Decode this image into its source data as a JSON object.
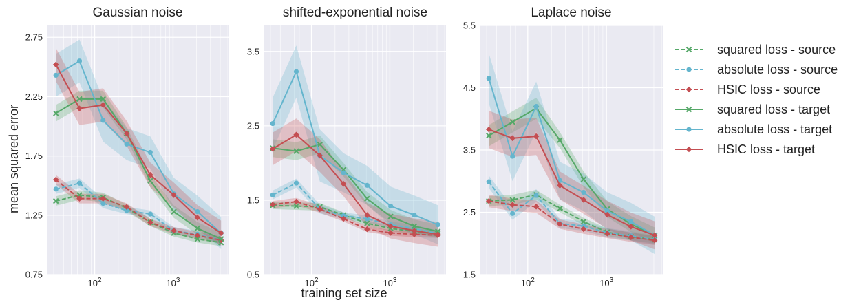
{
  "figure": {
    "ylabel": "mean squared error",
    "xlabel": "training set size"
  },
  "legend": [
    {
      "label": "squared loss - source",
      "color": "#55a868",
      "style": "dashed",
      "marker": "x"
    },
    {
      "label": "absolute loss - source",
      "color": "#64b5cd",
      "style": "dashed",
      "marker": "o"
    },
    {
      "label": "HSIC loss - source",
      "color": "#c44e52",
      "style": "dashed",
      "marker": "D"
    },
    {
      "label": "squared loss - target",
      "color": "#55a868",
      "style": "solid",
      "marker": "x"
    },
    {
      "label": "absolute loss - target",
      "color": "#64b5cd",
      "style": "solid",
      "marker": "o"
    },
    {
      "label": "HSIC loss - target",
      "color": "#c44e52",
      "style": "solid",
      "marker": "D"
    }
  ],
  "chart_data": [
    {
      "type": "line",
      "title": "Gaussian noise",
      "xscale": "log",
      "x": [
        32,
        64,
        128,
        256,
        512,
        1024,
        2048,
        4096
      ],
      "xticks": [
        {
          "value": 100,
          "label": "10^2"
        },
        {
          "value": 1000,
          "label": "10^3"
        }
      ],
      "ylim": [
        0.75,
        2.85
      ],
      "yticks": [
        {
          "value": 0.75,
          "label": "0.75"
        },
        {
          "value": 1.25,
          "label": "1.25"
        },
        {
          "value": 1.75,
          "label": "1.75"
        },
        {
          "value": 2.25,
          "label": "2.25"
        },
        {
          "value": 2.75,
          "label": "2.75"
        }
      ],
      "grid": true,
      "series": [
        {
          "name": "squared loss - source",
          "color": "#55a868",
          "style": "dashed",
          "marker": "x",
          "values": [
            1.37,
            1.42,
            1.4,
            1.31,
            1.19,
            1.1,
            1.05,
            1.02
          ],
          "band": 0.04
        },
        {
          "name": "absolute loss - source",
          "color": "#64b5cd",
          "style": "dashed",
          "marker": "o",
          "values": [
            1.47,
            1.52,
            1.35,
            1.29,
            1.26,
            1.12,
            1.09,
            1.04
          ],
          "band": 0.04
        },
        {
          "name": "HSIC loss - source",
          "color": "#c44e52",
          "style": "dashed",
          "marker": "D",
          "values": [
            1.55,
            1.39,
            1.39,
            1.32,
            1.19,
            1.12,
            1.08,
            1.04
          ],
          "band": 0.04
        },
        {
          "name": "squared loss - target",
          "color": "#55a868",
          "style": "solid",
          "marker": "x",
          "values": [
            2.11,
            2.23,
            2.23,
            1.94,
            1.54,
            1.28,
            1.14,
            1.05
          ],
          "band": 0.07
        },
        {
          "name": "absolute loss - target",
          "color": "#64b5cd",
          "style": "solid",
          "marker": "o",
          "values": [
            2.43,
            2.55,
            2.05,
            1.85,
            1.78,
            1.43,
            1.28,
            1.1
          ],
          "band": 0.18
        },
        {
          "name": "HSIC loss - target",
          "color": "#c44e52",
          "style": "solid",
          "marker": "D",
          "values": [
            2.52,
            2.15,
            2.18,
            1.94,
            1.59,
            1.42,
            1.23,
            1.1
          ],
          "band": 0.14
        }
      ]
    },
    {
      "type": "line",
      "title": "shifted-exponential noise",
      "xscale": "log",
      "x": [
        32,
        64,
        128,
        256,
        512,
        1024,
        2048,
        4096
      ],
      "xticks": [
        {
          "value": 100,
          "label": "10^2"
        },
        {
          "value": 1000,
          "label": "10^3"
        }
      ],
      "ylim": [
        0.5,
        3.85
      ],
      "yticks": [
        {
          "value": 0.5,
          "label": "0.5"
        },
        {
          "value": 1.5,
          "label": "1.5"
        },
        {
          "value": 2.5,
          "label": "2.5"
        },
        {
          "value": 3.5,
          "label": "3.5"
        }
      ],
      "grid": true,
      "series": [
        {
          "name": "squared loss - source",
          "color": "#55a868",
          "style": "dashed",
          "marker": "x",
          "values": [
            1.43,
            1.42,
            1.41,
            1.3,
            1.19,
            1.12,
            1.08,
            1.05
          ],
          "band": 0.05
        },
        {
          "name": "absolute loss - source",
          "color": "#64b5cd",
          "style": "dashed",
          "marker": "o",
          "values": [
            1.57,
            1.73,
            1.38,
            1.29,
            1.25,
            1.17,
            1.12,
            1.05
          ],
          "band": 0.06
        },
        {
          "name": "HSIC loss - source",
          "color": "#c44e52",
          "style": "dashed",
          "marker": "D",
          "values": [
            1.44,
            1.48,
            1.38,
            1.25,
            1.11,
            1.06,
            1.04,
            1.03
          ],
          "band": 0.05
        },
        {
          "name": "squared loss - target",
          "color": "#55a868",
          "style": "solid",
          "marker": "x",
          "values": [
            2.2,
            2.16,
            2.25,
            1.91,
            1.52,
            1.28,
            1.15,
            1.08
          ],
          "band": 0.12
        },
        {
          "name": "absolute loss - target",
          "color": "#64b5cd",
          "style": "solid",
          "marker": "o",
          "values": [
            2.53,
            3.23,
            2.1,
            1.87,
            1.7,
            1.42,
            1.3,
            1.17
          ],
          "band": 0.35
        },
        {
          "name": "HSIC loss - target",
          "color": "#c44e52",
          "style": "solid",
          "marker": "D",
          "values": [
            2.19,
            2.38,
            2.1,
            1.72,
            1.3,
            1.15,
            1.09,
            1.04
          ],
          "band": 0.22
        }
      ]
    },
    {
      "type": "line",
      "title": "Laplace noise",
      "xscale": "log",
      "x": [
        32,
        64,
        128,
        256,
        512,
        1024,
        2048,
        4096
      ],
      "xticks": [
        {
          "value": 100,
          "label": "10^2"
        },
        {
          "value": 1000,
          "label": "10^3"
        }
      ],
      "ylim": [
        1.5,
        5.5
      ],
      "yticks": [
        {
          "value": 1.5,
          "label": "1.5"
        },
        {
          "value": 2.5,
          "label": "2.5"
        },
        {
          "value": 3.5,
          "label": "3.5"
        },
        {
          "value": 4.5,
          "label": "4.5"
        },
        {
          "value": 5.5,
          "label": "5.5"
        }
      ],
      "grid": true,
      "series": [
        {
          "name": "squared loss - source",
          "color": "#55a868",
          "style": "dashed",
          "marker": "x",
          "values": [
            2.68,
            2.7,
            2.78,
            2.56,
            2.35,
            2.18,
            2.11,
            2.06
          ],
          "band": 0.08
        },
        {
          "name": "absolute loss - source",
          "color": "#64b5cd",
          "style": "dashed",
          "marker": "o",
          "values": [
            2.99,
            2.48,
            2.77,
            2.32,
            2.28,
            2.17,
            2.12,
            2.06
          ],
          "band": 0.1
        },
        {
          "name": "HSIC loss - source",
          "color": "#c44e52",
          "style": "dashed",
          "marker": "D",
          "values": [
            2.68,
            2.62,
            2.59,
            2.31,
            2.23,
            2.16,
            2.1,
            2.05
          ],
          "band": 0.1
        },
        {
          "name": "squared loss - target",
          "color": "#55a868",
          "style": "solid",
          "marker": "x",
          "values": [
            3.73,
            3.95,
            4.17,
            3.66,
            3.03,
            2.55,
            2.31,
            2.13
          ],
          "band": 0.17
        },
        {
          "name": "absolute loss - target",
          "color": "#64b5cd",
          "style": "solid",
          "marker": "o",
          "values": [
            4.65,
            3.4,
            4.2,
            3.01,
            2.82,
            2.52,
            2.35,
            2.13
          ],
          "band": 0.4
        },
        {
          "name": "HSIC loss - target",
          "color": "#c44e52",
          "style": "solid",
          "marker": "D",
          "values": [
            3.83,
            3.69,
            3.72,
            2.93,
            2.7,
            2.46,
            2.27,
            2.13
          ],
          "band": 0.3
        }
      ]
    }
  ]
}
